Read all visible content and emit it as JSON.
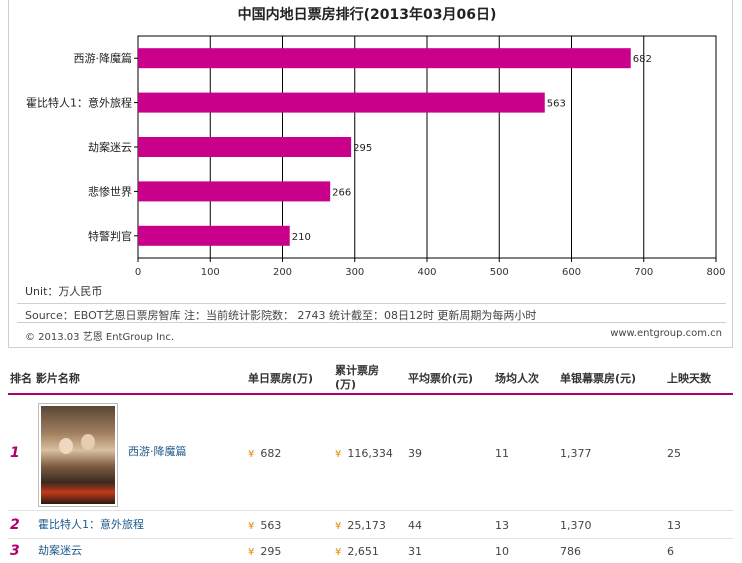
{
  "chart": {
    "unit_label": "Unit：万人民币",
    "source_line": "Source：EBOT艺恩日票房智库   注：当前统计影院数：  2743    统计截至：08日12时    更新周期为每两小时",
    "copyright": "© 2013.03 艺恩 EntGroup Inc.",
    "website": "www.entgroup.com.cn"
  },
  "chart_data": {
    "type": "bar",
    "orientation": "horizontal",
    "title": "中国内地日票房排行(2013年03月06日)",
    "categories": [
      "西游·降魔篇",
      "霍比特人1：意外旅程",
      "劫案迷云",
      "悲惨世界",
      "特警判官"
    ],
    "values": [
      682,
      563,
      295,
      266,
      210
    ],
    "xlim": [
      0,
      800
    ],
    "x_ticks": [
      "0",
      "100",
      "200",
      "300",
      "400",
      "500",
      "600",
      "700",
      "800"
    ],
    "grid": true,
    "bar_color": "#c8008a",
    "data_labels": [
      "682",
      "563",
      "295",
      "266",
      "210"
    ]
  },
  "table": {
    "headers": {
      "rank_name": "排名 影片名称",
      "daily": "单日票房(万)",
      "cumulative_line1": "累计票房",
      "cumulative_line2": "(万)",
      "avg_price": "平均票价(元)",
      "avg_attendance": "场均人次",
      "per_screen": "单银幕票房(元)",
      "days": "上映天数"
    },
    "currency_icon": "¥",
    "rows": [
      {
        "rank": "1",
        "name": "西游·降魔篇",
        "daily": "682",
        "cumulative": "116,334",
        "avg_price": "39",
        "avg_attendance": "11",
        "per_screen": "1,377",
        "days": "25"
      },
      {
        "rank": "2",
        "name": "霍比特人1：意外旅程",
        "daily": "563",
        "cumulative": "25,173",
        "avg_price": "44",
        "avg_attendance": "13",
        "per_screen": "1,370",
        "days": "13"
      },
      {
        "rank": "3",
        "name": "劫案迷云",
        "daily": "295",
        "cumulative": "2,651",
        "avg_price": "31",
        "avg_attendance": "10",
        "per_screen": "786",
        "days": "6"
      }
    ],
    "accent_color": "#b0006f"
  }
}
